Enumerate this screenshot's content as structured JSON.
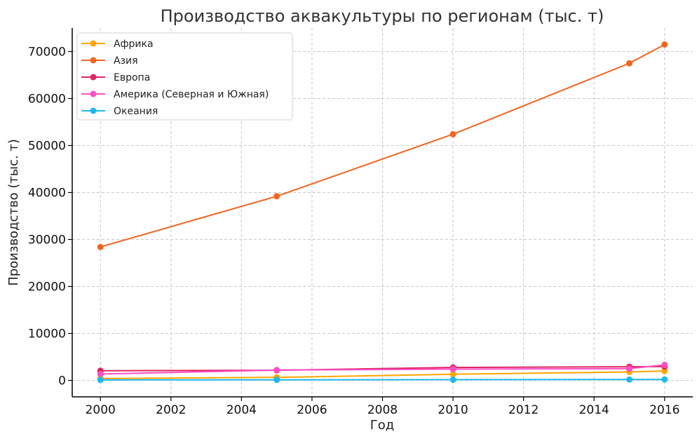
{
  "chart_data": {
    "type": "line",
    "title": "Производство аквакультуры по регионам (тыс. т)",
    "xlabel": "Год",
    "ylabel": "Производство (тыс. т)",
    "xlim": [
      1999.2,
      2016.8
    ],
    "ylim": [
      -3500,
      75000
    ],
    "xticks": [
      2000,
      2002,
      2004,
      2006,
      2008,
      2010,
      2012,
      2014,
      2016
    ],
    "yticks": [
      0,
      10000,
      20000,
      30000,
      40000,
      50000,
      60000,
      70000
    ],
    "x": [
      2000,
      2005,
      2010,
      2015,
      2016
    ],
    "grid": true,
    "legend_position": "top-left",
    "series": [
      {
        "name": "Африка",
        "color": "#FFA500",
        "values": [
          400,
          650,
          1300,
          1800,
          2000
        ]
      },
      {
        "name": "Азия",
        "color": "#F26522",
        "values": [
          28400,
          39200,
          52400,
          67500,
          71500
        ]
      },
      {
        "name": "Европа",
        "color": "#E0245E",
        "values": [
          2050,
          2150,
          2750,
          2900,
          2950
        ]
      },
      {
        "name": "Америка (Северная и Южная)",
        "color": "#FF4FC4",
        "values": [
          1350,
          2200,
          2400,
          2500,
          3300
        ]
      },
      {
        "name": "Океания",
        "color": "#1FB8F0",
        "values": [
          100,
          120,
          150,
          180,
          200
        ]
      }
    ]
  }
}
